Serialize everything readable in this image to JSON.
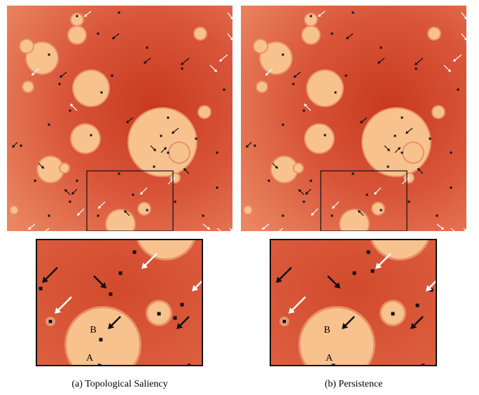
{
  "panels": [
    {
      "caption": "(a) Topological Saliency",
      "zoom_labels": [
        "A",
        "B"
      ]
    },
    {
      "caption": "(b) Persistence",
      "zoom_labels": [
        "A",
        "B"
      ]
    }
  ]
}
